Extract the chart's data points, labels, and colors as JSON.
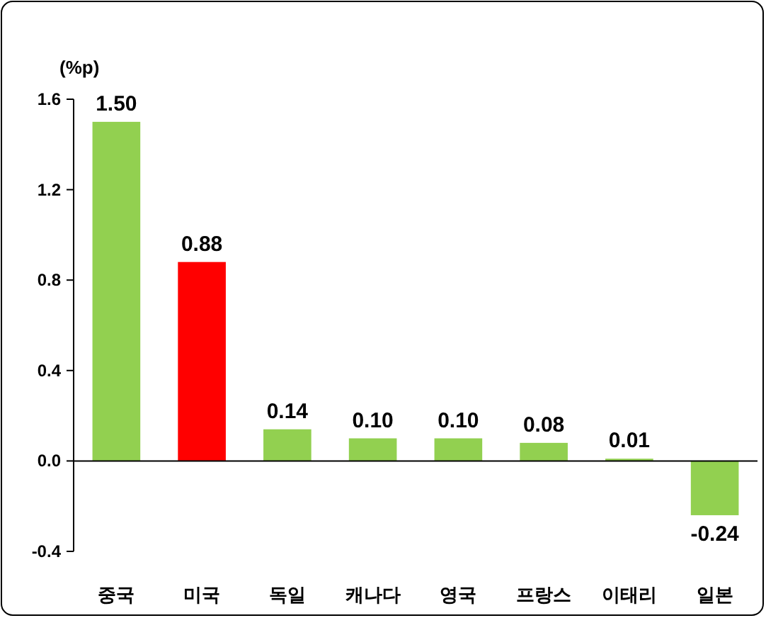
{
  "chart_data": {
    "type": "bar",
    "ylabel": "(%p)",
    "categories": [
      "중국",
      "미국",
      "독일",
      "캐나다",
      "영국",
      "프랑스",
      "이태리",
      "일본"
    ],
    "values": [
      1.5,
      0.88,
      0.14,
      0.1,
      0.1,
      0.08,
      0.01,
      -0.24
    ],
    "colors": [
      "#92d050",
      "#ff0000",
      "#92d050",
      "#92d050",
      "#92d050",
      "#92d050",
      "#92d050",
      "#92d050"
    ],
    "value_labels": [
      "1.50",
      "0.88",
      "0.14",
      "0.10",
      "0.10",
      "0.08",
      "0.01",
      "-0.24"
    ],
    "ylim": [
      -0.4,
      1.6
    ],
    "yticks": [
      {
        "value": -0.4,
        "label": "-0.4"
      },
      {
        "value": 0,
        "label": "0.0"
      },
      {
        "value": 0.4,
        "label": "0.4"
      },
      {
        "value": 0.8,
        "label": "0.8"
      },
      {
        "value": 1.2,
        "label": "1.2"
      },
      {
        "value": 1.6,
        "label": "1.6"
      }
    ]
  }
}
